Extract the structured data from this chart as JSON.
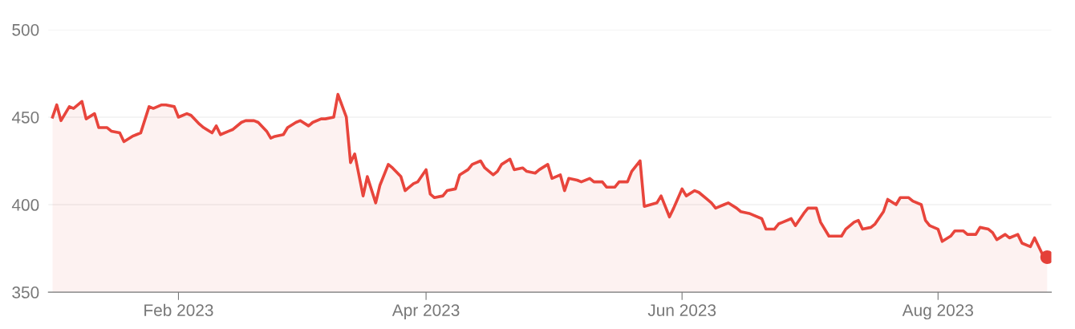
{
  "chart_data": {
    "type": "area",
    "xlim": [
      "2023-01-01",
      "2023-08-28"
    ],
    "ylim": [
      350,
      500
    ],
    "yticks": [
      350,
      400,
      450,
      500
    ],
    "xticks": [
      {
        "value": "2023-02-01",
        "label": "Feb 2023"
      },
      {
        "value": "2023-04-01",
        "label": "Apr 2023"
      },
      {
        "value": "2023-06-01",
        "label": "Jun 2023"
      },
      {
        "value": "2023-08-01",
        "label": "Aug 2023"
      }
    ],
    "grid": "y",
    "legend": false,
    "line_style": "solid",
    "marker": "none",
    "series": [
      {
        "color": "#e8453c",
        "x": [
          "2023-01-02",
          "2023-01-03",
          "2023-01-04",
          "2023-01-06",
          "2023-01-07",
          "2023-01-09",
          "2023-01-10",
          "2023-01-12",
          "2023-01-13",
          "2023-01-15",
          "2023-01-16",
          "2023-01-18",
          "2023-01-19",
          "2023-01-21",
          "2023-01-22",
          "2023-01-23",
          "2023-01-25",
          "2023-01-26",
          "2023-01-28",
          "2023-01-29",
          "2023-01-31",
          "2023-02-01",
          "2023-02-03",
          "2023-02-04",
          "2023-02-06",
          "2023-02-07",
          "2023-02-09",
          "2023-02-10",
          "2023-02-11",
          "2023-02-13",
          "2023-02-14",
          "2023-02-16",
          "2023-02-17",
          "2023-02-19",
          "2023-02-20",
          "2023-02-22",
          "2023-02-23",
          "2023-02-24",
          "2023-02-26",
          "2023-02-27",
          "2023-03-01",
          "2023-03-02",
          "2023-03-04",
          "2023-03-05",
          "2023-03-07",
          "2023-03-08",
          "2023-03-10",
          "2023-03-11",
          "2023-03-13",
          "2023-03-14",
          "2023-03-15",
          "2023-03-17",
          "2023-03-18",
          "2023-03-20",
          "2023-03-21",
          "2023-03-23",
          "2023-03-24",
          "2023-03-26",
          "2023-03-27",
          "2023-03-29",
          "2023-03-30",
          "2023-04-01",
          "2023-04-02",
          "2023-04-03",
          "2023-04-05",
          "2023-04-06",
          "2023-04-08",
          "2023-04-09",
          "2023-04-11",
          "2023-04-12",
          "2023-04-14",
          "2023-04-15",
          "2023-04-17",
          "2023-04-18",
          "2023-04-19",
          "2023-04-21",
          "2023-04-22",
          "2023-04-24",
          "2023-04-25",
          "2023-04-27",
          "2023-04-28",
          "2023-04-30",
          "2023-05-01",
          "2023-05-03",
          "2023-05-04",
          "2023-05-05",
          "2023-05-07",
          "2023-05-08",
          "2023-05-10",
          "2023-05-11",
          "2023-05-13",
          "2023-05-14",
          "2023-05-16",
          "2023-05-17",
          "2023-05-19",
          "2023-05-20",
          "2023-05-22",
          "2023-05-23",
          "2023-05-26",
          "2023-05-27",
          "2023-05-29",
          "2023-05-30",
          "2023-06-01",
          "2023-06-02",
          "2023-06-04",
          "2023-06-05",
          "2023-06-07",
          "2023-06-08",
          "2023-06-09",
          "2023-06-11",
          "2023-06-12",
          "2023-06-14",
          "2023-06-15",
          "2023-06-17",
          "2023-06-18",
          "2023-06-20",
          "2023-06-21",
          "2023-06-23",
          "2023-06-24",
          "2023-06-25",
          "2023-06-27",
          "2023-06-28",
          "2023-06-30",
          "2023-07-01",
          "2023-07-03",
          "2023-07-04",
          "2023-07-06",
          "2023-07-07",
          "2023-07-09",
          "2023-07-10",
          "2023-07-12",
          "2023-07-13",
          "2023-07-14",
          "2023-07-16",
          "2023-07-17",
          "2023-07-19",
          "2023-07-20",
          "2023-07-22",
          "2023-07-23",
          "2023-07-25",
          "2023-07-26",
          "2023-07-28",
          "2023-07-29",
          "2023-07-30",
          "2023-08-01",
          "2023-08-02",
          "2023-08-04",
          "2023-08-05",
          "2023-08-07",
          "2023-08-08",
          "2023-08-10",
          "2023-08-11",
          "2023-08-13",
          "2023-08-14",
          "2023-08-15",
          "2023-08-17",
          "2023-08-18",
          "2023-08-20",
          "2023-08-21",
          "2023-08-23",
          "2023-08-24",
          "2023-08-26",
          "2023-08-27"
        ],
        "values": [
          450,
          457,
          448,
          456,
          455,
          459,
          449,
          452,
          444,
          444,
          442,
          441,
          436,
          439,
          440,
          441,
          456,
          455,
          457,
          457,
          456,
          450,
          452,
          451,
          446,
          444,
          441,
          445,
          440,
          442,
          443,
          447,
          448,
          448,
          447,
          442,
          438,
          439,
          440,
          444,
          447,
          448,
          445,
          447,
          449,
          449,
          450,
          463,
          450,
          424,
          429,
          405,
          416,
          401,
          411,
          423,
          421,
          416,
          408,
          412,
          413,
          420,
          406,
          404,
          405,
          408,
          409,
          417,
          420,
          423,
          425,
          421,
          417,
          419,
          423,
          426,
          420,
          421,
          419,
          418,
          420,
          423,
          415,
          417,
          408,
          415,
          414,
          413,
          415,
          413,
          413,
          410,
          410,
          413,
          413,
          419,
          425,
          399,
          401,
          405,
          393,
          398,
          409,
          405,
          408,
          407,
          403,
          401,
          398,
          400,
          401,
          398,
          396,
          395,
          394,
          392,
          386,
          386,
          389,
          390,
          392,
          388,
          395,
          398,
          398,
          390,
          382,
          382,
          382,
          386,
          390,
          391,
          386,
          387,
          389,
          396,
          403,
          400,
          404,
          404,
          402,
          400,
          391,
          388,
          386,
          379,
          382,
          385,
          385,
          383,
          383,
          387,
          386,
          384,
          380,
          383,
          381,
          383,
          378,
          376,
          381,
          371,
          370
        ]
      },
      {
        "type": "scatter",
        "color": "#e44038",
        "marker": "circle",
        "x": [
          "2023-08-27"
        ],
        "values": [
          370
        ]
      }
    ]
  }
}
